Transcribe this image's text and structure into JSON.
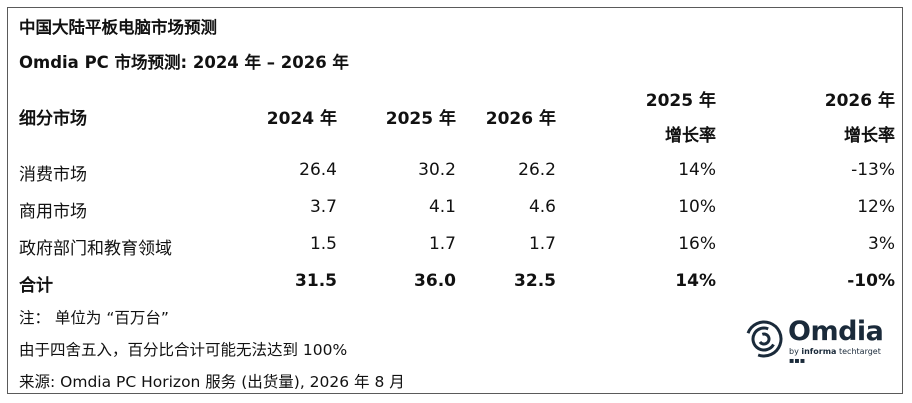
{
  "title": "中国大陆平板电脑市场预测",
  "subtitle": "Omdia PC 市场预测: 2024 年 – 2026 年",
  "header": {
    "segment": "细分市场",
    "y2024": "2024 年",
    "y2025": "2025 年",
    "y2026": "2026 年",
    "g2025_line1": "2025 年",
    "g2025_line2": "增长率",
    "g2026_line1": "2026 年",
    "g2026_line2": "增长率"
  },
  "rows": [
    {
      "segment": "消费市场",
      "y2024": "26.4",
      "y2025": "30.2",
      "y2026": "26.2",
      "g2025": "14%",
      "g2026": "-13%"
    },
    {
      "segment": "商用市场",
      "y2024": "3.7",
      "y2025": "4.1",
      "y2026": "4.6",
      "g2025": "10%",
      "g2026": "12%"
    },
    {
      "segment": "政府部门和教育领域",
      "y2024": "1.5",
      "y2025": "1.7",
      "y2026": "1.7",
      "g2025": "16%",
      "g2026": "3%"
    },
    {
      "segment": "合计",
      "y2024": "31.5",
      "y2025": "36.0",
      "y2026": "32.5",
      "g2025": "14%",
      "g2026": "-10%"
    }
  ],
  "notes": {
    "unit": "注：  单位为 “百万台”",
    "rounding": "由于四舍五入，百分比合计可能无法达到 100%",
    "source": "来源: Omdia PC Horizon 服务 (出货量), 2026 年 8 月"
  },
  "logo": {
    "word": "Omdia",
    "tag_prefix": "by",
    "tag_brand": "informa",
    "tag_suffix": "techtarget",
    "icon": "omdia-logo-icon"
  }
}
